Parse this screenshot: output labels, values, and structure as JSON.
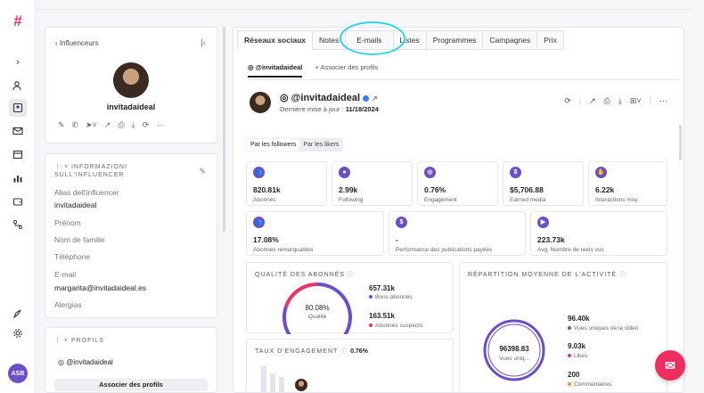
{
  "sidebar": {
    "avatar_initials": "ASB"
  },
  "profile": {
    "back_label": "Influenceurs",
    "name": "invitadaideal",
    "info_title": "INFORMAZIONI SULL'INFLUENCER",
    "fields": [
      {
        "label": "Alias dell'influencer",
        "value": "invitadaideal"
      },
      {
        "label": "Prénom",
        "value": ""
      },
      {
        "label": "Nom de famille",
        "value": ""
      },
      {
        "label": "Téléphone",
        "value": ""
      },
      {
        "label": "E-mail",
        "value": "margarita@invitadaideal.es"
      },
      {
        "label": "Alergias",
        "value": ""
      }
    ],
    "profiles_title": "PROFILS",
    "profile_handle": "@invitadaideal",
    "associate_button": "Associer des profils"
  },
  "tabs": [
    "Réseaux sociaux",
    "Notes",
    "E-mails",
    "Listes",
    "Programmes",
    "Campagnes",
    "Prix"
  ],
  "subtabs": {
    "handle": "@invitadaideal",
    "associate": "Associer des profils"
  },
  "header": {
    "handle": "@invitadaideal",
    "last_update_label": "Dernière mise à jour :",
    "last_update_value": "11/18/2024"
  },
  "segment": {
    "followers": "Par les followers",
    "likers": "Par les likers"
  },
  "stats_row1": [
    {
      "value": "820.81k",
      "label": "Abonnés",
      "icon": "users-icon"
    },
    {
      "value": "2.99k",
      "label": "Following",
      "icon": "user-icon"
    },
    {
      "value": "0.76%",
      "label": "Engagement",
      "icon": "target-icon"
    },
    {
      "value": "$5,706.88",
      "label": "Earned media",
      "icon": "dollar-icon"
    },
    {
      "value": "6.22k",
      "label": "Interactions moy.",
      "icon": "hand-icon"
    }
  ],
  "stats_row2": [
    {
      "value": "17.08%",
      "label": "Abonnés remarquables",
      "icon": "users-icon"
    },
    {
      "value": "-",
      "label": "Performance des publications payées",
      "icon": "dollar-icon"
    },
    {
      "value": "223.73k",
      "label": "Avg. Nombre de reels vus",
      "icon": "play-icon"
    }
  ],
  "quality": {
    "title": "QUALITÉ DES ABONNÉS",
    "center_value": "80.08%",
    "center_label": "Qualité",
    "good_value": "657.31k",
    "good_label": "Bons abonnés",
    "bad_value": "163.51k",
    "bad_label": "Abonnés suspects",
    "good_fraction": 0.8008
  },
  "engagement": {
    "title": "TAUX D'ENGAGEMENT",
    "value": "0.76%"
  },
  "activity": {
    "title": "RÉPARTITION MOYENNE DE L'ACTIVITÉ",
    "center_value": "96398.83",
    "center_label": "Vues uniq...",
    "items": [
      {
        "value": "96.40k",
        "label": "Vues uniques de la vidéo"
      },
      {
        "value": "9.03k",
        "label": "Likes"
      },
      {
        "value": "200",
        "label": "Commentaires"
      }
    ]
  },
  "colors": {
    "accent": "#6a4fc7",
    "brand": "#e8336b",
    "highlight": "#2fd5e0"
  }
}
